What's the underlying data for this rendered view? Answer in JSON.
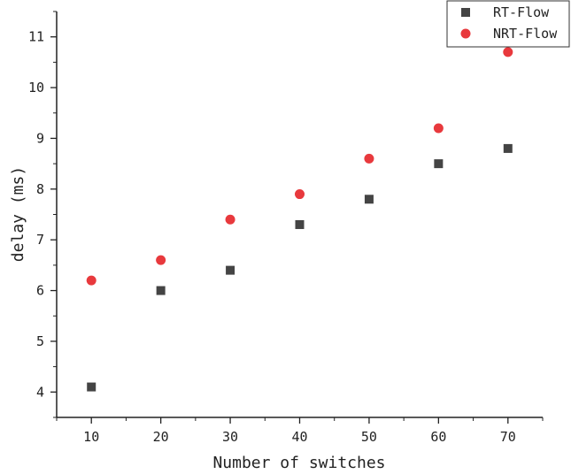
{
  "chart_data": {
    "type": "scatter",
    "title": "",
    "xlabel": "Number of switches",
    "ylabel": "delay (ms)",
    "x": [
      10,
      20,
      30,
      40,
      50,
      60,
      70
    ],
    "xlim": [
      5,
      75
    ],
    "ylim": [
      3.5,
      11.5
    ],
    "xticks": [
      "10",
      "20",
      "30",
      "40",
      "50",
      "60",
      "70"
    ],
    "yticks": [
      "4",
      "5",
      "6",
      "7",
      "8",
      "9",
      "10",
      "11"
    ],
    "legend_position": "top-right",
    "grid": false,
    "series": [
      {
        "name": "RT-Flow",
        "marker": "square",
        "color": "#444444",
        "values": [
          4.1,
          6.0,
          6.4,
          7.3,
          7.8,
          8.5,
          8.8
        ]
      },
      {
        "name": "NRT-Flow",
        "marker": "circle",
        "color": "#e8393d",
        "values": [
          6.2,
          6.6,
          7.4,
          7.9,
          8.6,
          9.2,
          10.7
        ]
      }
    ]
  }
}
